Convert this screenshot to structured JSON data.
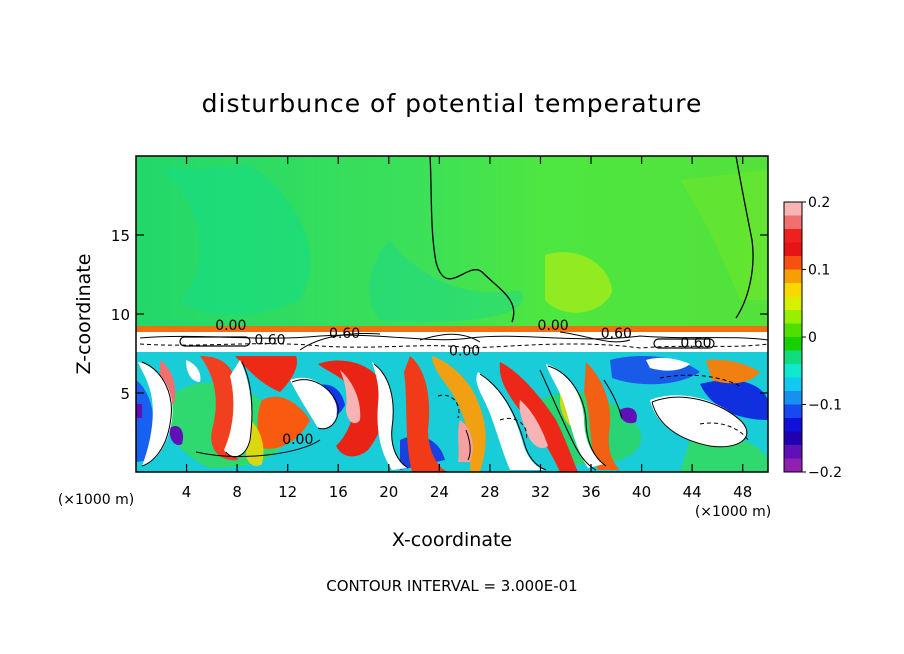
{
  "chart_data": {
    "type": "heatmap",
    "title": "disturbunce of potential temperature",
    "xlabel": "X-coordinate",
    "ylabel": "Z-coordinate",
    "x_unit_left": "(×1000 m)",
    "x_unit_right": "(×1000 m)",
    "xlim": [
      0,
      50
    ],
    "ylim": [
      0,
      20
    ],
    "xticks": [
      4,
      8,
      12,
      16,
      20,
      24,
      28,
      32,
      36,
      40,
      44,
      48
    ],
    "xtick_labels": [
      "4",
      "8",
      "12",
      "16",
      "20",
      "24",
      "28",
      "32",
      "36",
      "40",
      "44",
      "48"
    ],
    "yticks": [
      5,
      10,
      15
    ],
    "ytick_labels": [
      "5",
      "10",
      "15"
    ],
    "footer": "CONTOUR INTERVAL = 3.000E-01",
    "colorbar": {
      "range": [
        -0.2,
        0.2
      ],
      "ticks": [
        0.2,
        0.1,
        0,
        -0.1,
        -0.2
      ],
      "tick_labels": [
        "0.2",
        "0.1",
        "0",
        "−0.1",
        "−0.2"
      ],
      "colors": [
        "#f8b4b4",
        "#f07070",
        "#ee2020",
        "#e61414",
        "#f85010",
        "#f5a000",
        "#f8d800",
        "#d8f000",
        "#98f000",
        "#50e000",
        "#18d000",
        "#10dc80",
        "#10e8d0",
        "#10c8f0",
        "#1890f0",
        "#1848f0",
        "#1010d8",
        "#2000b0",
        "#6010b8",
        "#9020b0"
      ]
    },
    "contour_labels": [
      {
        "text": "0.00",
        "x": 7.5,
        "z": 9.3
      },
      {
        "text": "0.60",
        "x": 10.6,
        "z": 8.4
      },
      {
        "text": "0.60",
        "x": 16.5,
        "z": 8.8
      },
      {
        "text": "0.00",
        "x": 26.0,
        "z": 7.7
      },
      {
        "text": "0.00",
        "x": 33.0,
        "z": 9.3
      },
      {
        "text": "0.60",
        "x": 38.0,
        "z": 8.8
      },
      {
        "text": "0.60",
        "x": 44.3,
        "z": 8.2
      },
      {
        "text": "0.00",
        "x": 12.8,
        "z": 2.1
      }
    ]
  }
}
